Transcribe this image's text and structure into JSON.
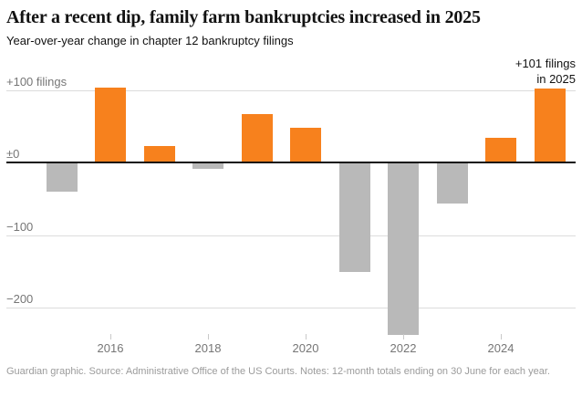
{
  "header": {
    "title": "After a recent dip, family farm bankruptcies increased in 2025",
    "subtitle": "Year-over-year change in chapter 12 bankruptcy filings"
  },
  "annotation": {
    "line1": "+101 filings",
    "line2": "in 2025"
  },
  "footer": {
    "text": "Guardian graphic. Source: Administrative Office of the US Courts. Notes: 12-month totals ending on 30 June for each year."
  },
  "chart_data": {
    "type": "bar",
    "title": "After a recent dip, family farm bankruptcies increased in 2025",
    "subtitle": "Year-over-year change in chapter 12 bankruptcy filings",
    "xlabel": "",
    "ylabel": "Year-over-year change in chapter 12 bankruptcy filings",
    "categories": [
      2015,
      2016,
      2017,
      2018,
      2019,
      2020,
      2021,
      2022,
      2023,
      2024,
      2025
    ],
    "values": [
      -39,
      102,
      21,
      -8,
      66,
      46,
      -150,
      -237,
      -55,
      33,
      101
    ],
    "annotation": "+101 filings in 2025",
    "ylim": [
      -250,
      110
    ],
    "grid": "horizontal",
    "legend": "none",
    "y_ticks": [
      {
        "label": "+100 filings",
        "value": 100
      },
      {
        "label": "±0",
        "value": 0
      },
      {
        "label": "−100",
        "value": -100
      },
      {
        "label": "−200",
        "value": -200
      }
    ],
    "x_ticks": [
      {
        "label": "2016",
        "year": 2016
      },
      {
        "label": "2018",
        "year": 2018
      },
      {
        "label": "2020",
        "year": 2020
      },
      {
        "label": "2022",
        "year": 2022
      },
      {
        "label": "2024",
        "year": 2024
      }
    ],
    "colors": {
      "positive_bar": "#f7811d",
      "negative_bar": "#b9b9b9",
      "zero_line": "#121212",
      "gridline": "#dcdcdc",
      "axis_label": "#767676",
      "title": "#121212",
      "footer": "#9b9b9b"
    }
  }
}
